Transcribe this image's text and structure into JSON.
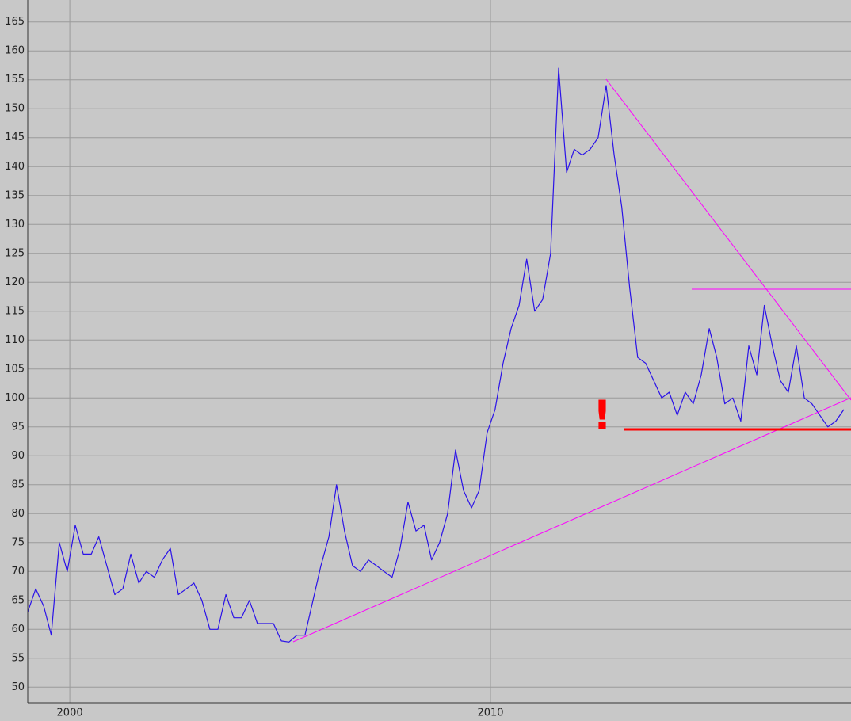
{
  "chart_data": {
    "type": "line",
    "annotation": "!",
    "x": [
      1999.0,
      1999.19,
      1999.38,
      1999.56,
      1999.75,
      1999.94,
      2000.13,
      2000.32,
      2000.51,
      2000.69,
      2000.88,
      2001.07,
      2001.26,
      2001.45,
      2001.64,
      2001.82,
      2002.01,
      2002.2,
      2002.39,
      2002.58,
      2002.77,
      2002.95,
      2003.14,
      2003.33,
      2003.52,
      2003.71,
      2003.9,
      2004.08,
      2004.27,
      2004.46,
      2004.65,
      2004.84,
      2005.03,
      2005.21,
      2005.4,
      2005.59,
      2005.78,
      2005.97,
      2006.16,
      2006.34,
      2006.53,
      2006.72,
      2006.91,
      2007.1,
      2007.29,
      2007.47,
      2007.66,
      2007.85,
      2008.04,
      2008.23,
      2008.42,
      2008.6,
      2008.79,
      2008.98,
      2009.17,
      2009.36,
      2009.55,
      2009.73,
      2009.92,
      2010.11,
      2010.3,
      2010.49,
      2010.68,
      2010.86,
      2011.05,
      2011.24,
      2011.43,
      2011.62,
      2011.81,
      2011.99,
      2012.18,
      2012.37,
      2012.56,
      2012.75,
      2012.94,
      2013.12,
      2013.31,
      2013.5,
      2013.69,
      2013.88,
      2014.07,
      2014.25,
      2014.44,
      2014.63,
      2014.82,
      2015.01,
      2015.2,
      2015.38,
      2015.57,
      2015.76,
      2015.95,
      2016.14,
      2016.33,
      2016.51,
      2016.7,
      2016.89,
      2017.08,
      2017.27,
      2017.46,
      2017.64,
      2017.83,
      2018.02,
      2018.21,
      2018.4
    ],
    "series": [
      {
        "color": "#2a12e8",
        "values": [
          63,
          67,
          64,
          59,
          75,
          70,
          78,
          73,
          73,
          76,
          71,
          66,
          67,
          73,
          68,
          70,
          69,
          72,
          74,
          66,
          67,
          68,
          65,
          60,
          60,
          66,
          62,
          62,
          65,
          61,
          61,
          61,
          58,
          57.8,
          59,
          59,
          65,
          71,
          76,
          85,
          77,
          71,
          70,
          72,
          71,
          70,
          69,
          74,
          82,
          77,
          78,
          72,
          75,
          80,
          91,
          84,
          81,
          84,
          94,
          98,
          106,
          112,
          116,
          124,
          115,
          117,
          125,
          157,
          139,
          143,
          142,
          143,
          145,
          154,
          142,
          133,
          119,
          107,
          106,
          103,
          100,
          101,
          97,
          101,
          99,
          104,
          112,
          107,
          99,
          100,
          96,
          109,
          104,
          116,
          109,
          103,
          101,
          109,
          100,
          99,
          97,
          95,
          96,
          98
        ]
      }
    ],
    "xlim": [
      1999.0,
      2018.57
    ],
    "xticks": [
      2000,
      2010
    ],
    "ylim": [
      47.3,
      168.8
    ],
    "yticks": [
      50,
      55,
      60,
      65,
      70,
      75,
      80,
      85,
      90,
      95,
      100,
      105,
      110,
      115,
      120,
      125,
      130,
      135,
      140,
      145,
      150,
      155,
      160,
      165
    ],
    "grid": true
  }
}
